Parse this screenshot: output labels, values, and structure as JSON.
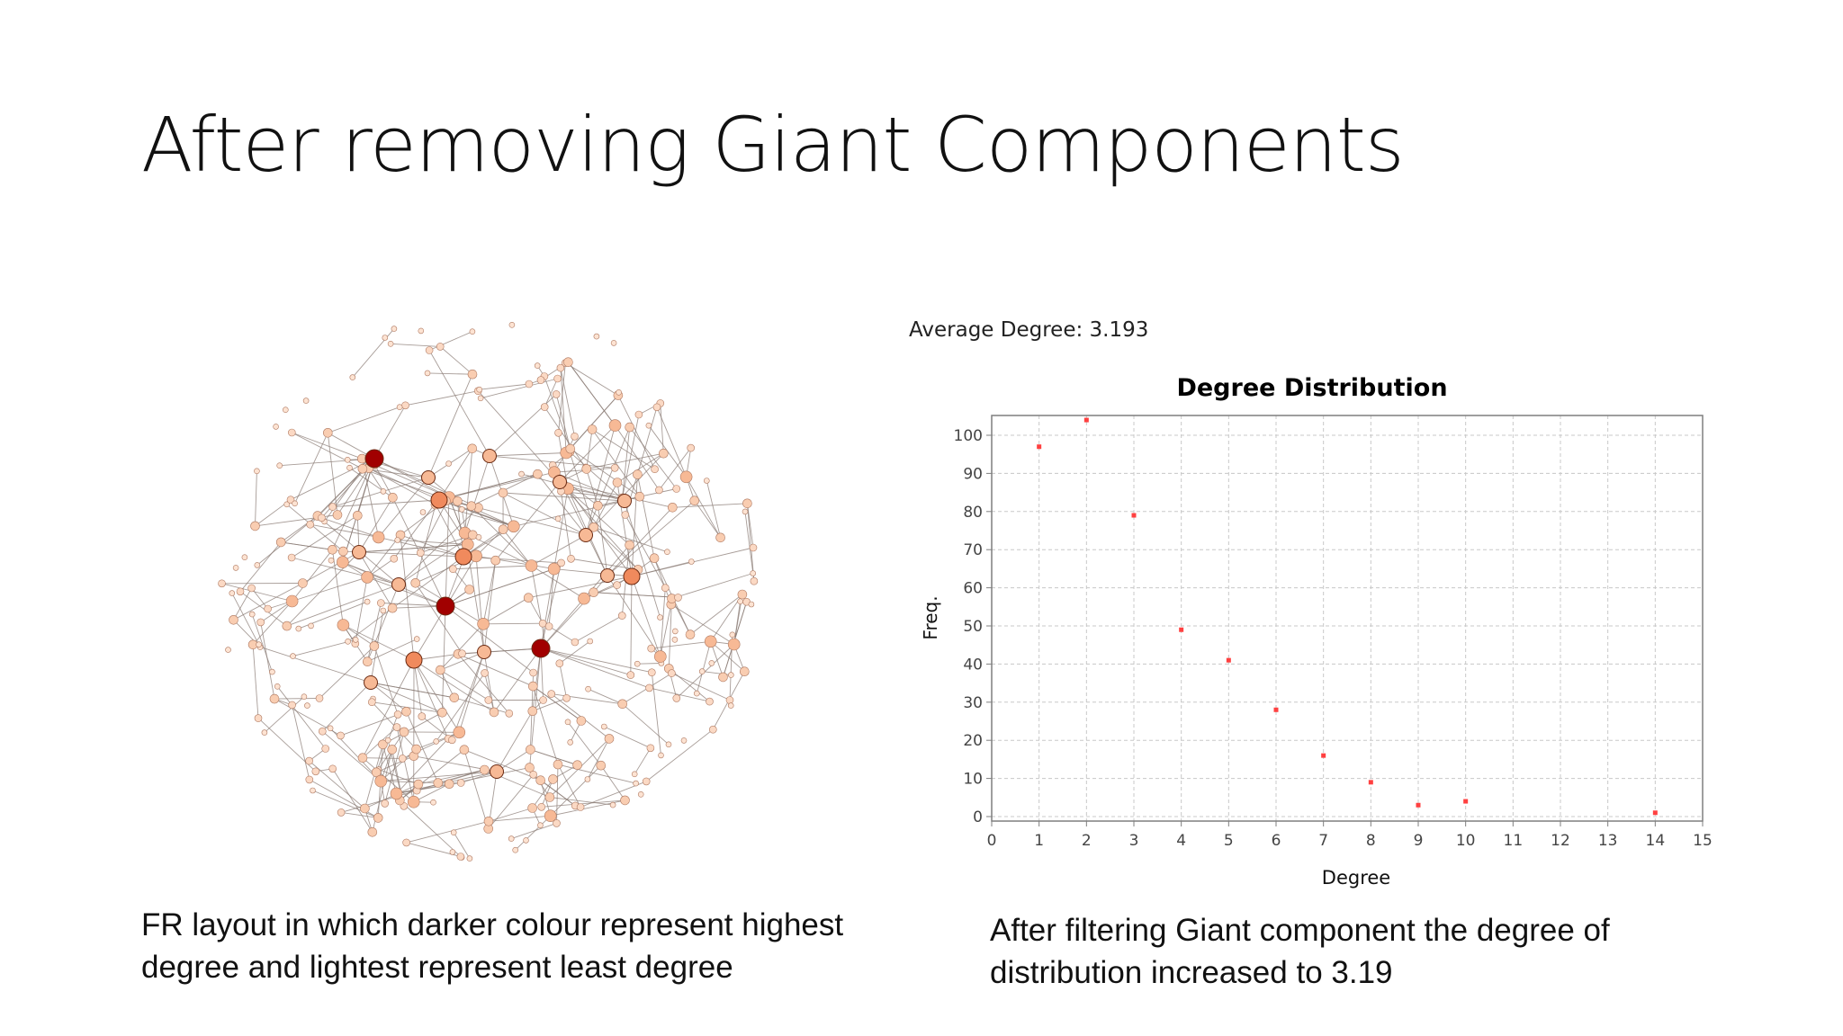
{
  "slide": {
    "title": "After removing Giant Components",
    "left_caption": "FR layout in which darker colour represent highest degree and lightest represent least degree",
    "right_caption": "After filtering Giant component the degree of distribution increased to 3.19",
    "average_degree": "Average Degree: 3.193"
  },
  "colors": {
    "node_lightest": "#fde3d2",
    "node_light": "#f7b995",
    "node_mid": "#f08a5d",
    "node_darkest": "#a10000",
    "edge": "#8a7b74",
    "point": "#ff4040",
    "grid": "#c8c8c8"
  },
  "chart_data": {
    "type": "scatter",
    "title": "Degree Distribution",
    "xlabel": "Degree",
    "ylabel": "Freq.",
    "xlim": [
      0,
      15
    ],
    "ylim": [
      0,
      100
    ],
    "xticks": [
      0,
      1,
      2,
      3,
      4,
      5,
      6,
      7,
      8,
      9,
      10,
      11,
      12,
      13,
      14,
      15
    ],
    "yticks": [
      0,
      10,
      20,
      30,
      40,
      50,
      60,
      70,
      80,
      90,
      100
    ],
    "grid": true,
    "points": [
      {
        "x": 1,
        "y": 97
      },
      {
        "x": 2,
        "y": 104
      },
      {
        "x": 3,
        "y": 79
      },
      {
        "x": 4,
        "y": 49
      },
      {
        "x": 5,
        "y": 41
      },
      {
        "x": 6,
        "y": 28
      },
      {
        "x": 7,
        "y": 16
      },
      {
        "x": 8,
        "y": 9
      },
      {
        "x": 9,
        "y": 3
      },
      {
        "x": 10,
        "y": 4
      },
      {
        "x": 14,
        "y": 1
      }
    ]
  }
}
